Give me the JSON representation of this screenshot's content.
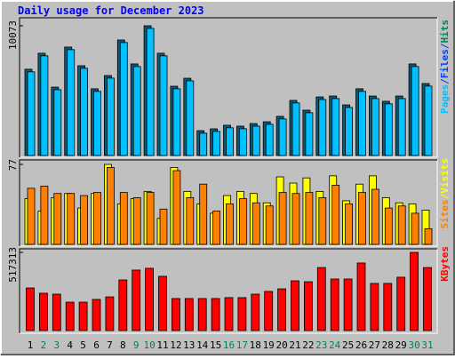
{
  "chart_data": [
    {
      "type": "bar",
      "title": "Daily usage for December 2023",
      "ylim": [
        0,
        10073
      ],
      "yticks": [
        10073
      ],
      "side_labels": [
        {
          "text": "Pages",
          "color": "#00c0ff"
        },
        {
          "text": "/",
          "color": "#0040ff"
        },
        {
          "text": "Files",
          "color": "#0040ff"
        },
        {
          "text": "/",
          "color": "#0040ff"
        },
        {
          "text": "Hits",
          "color": "#00805c"
        }
      ],
      "series": [
        {
          "color": "#0a5a7a",
          "values": [
            6700,
            7940,
            5310,
            8420,
            6970,
            5180,
            6210,
            8970,
            7110,
            10073,
            7940,
            5380,
            6000,
            1930,
            2070,
            2350,
            2280,
            2480,
            2620,
            3040,
            4280,
            3520,
            4550,
            4620,
            3930,
            5180,
            4620,
            4210,
            4620,
            7110,
            5590
          ]
        },
        {
          "color": "#00c0ff",
          "values": [
            6500,
            7740,
            5110,
            8220,
            6770,
            4980,
            6010,
            8770,
            6910,
            9870,
            7740,
            5180,
            5800,
            1730,
            1870,
            2150,
            2080,
            2280,
            2420,
            2840,
            4080,
            3320,
            4350,
            4420,
            3730,
            4980,
            4420,
            4010,
            4420,
            6910,
            5390
          ]
        }
      ]
    },
    {
      "type": "bar",
      "ylim": [
        0,
        77
      ],
      "yticks": [
        77
      ],
      "side_labels": [
        {
          "text": "Sites",
          "color": "#ff8000"
        },
        {
          "text": "/",
          "color": "#ffff00"
        },
        {
          "text": "Visits",
          "color": "#ffff00"
        }
      ],
      "series": [
        {
          "color": "#ffff00",
          "values": [
            44,
            32,
            45,
            49,
            35,
            49,
            77,
            39,
            44,
            51,
            25,
            74,
            51,
            39,
            30,
            47,
            51,
            49,
            40,
            65,
            59,
            64,
            51,
            66,
            42,
            58,
            66,
            45,
            40,
            39,
            33
          ]
        },
        {
          "color": "#ff8000",
          "values": [
            54,
            56,
            49,
            49,
            47,
            50,
            74,
            50,
            45,
            50,
            34,
            71,
            45,
            58,
            32,
            39,
            44,
            40,
            37,
            50,
            49,
            50,
            45,
            57,
            39,
            50,
            53,
            35,
            37,
            30,
            15
          ]
        }
      ]
    },
    {
      "type": "bar",
      "ylim": [
        0,
        517313
      ],
      "yticks": [
        517313
      ],
      "side_labels": [
        {
          "text": "KBytes",
          "color": "#ff0000"
        }
      ],
      "categories": [
        "1",
        "2",
        "3",
        "4",
        "5",
        "6",
        "7",
        "8",
        "9",
        "10",
        "11",
        "12",
        "13",
        "14",
        "15",
        "16",
        "17",
        "18",
        "19",
        "20",
        "21",
        "22",
        "23",
        "24",
        "25",
        "26",
        "27",
        "28",
        "29",
        "30",
        "31"
      ],
      "x_label_colors": [
        "#000000",
        "#00805c",
        "#00805c",
        "#000000",
        "#000000",
        "#000000",
        "#000000",
        "#000000",
        "#00805c",
        "#00805c",
        "#000000",
        "#000000",
        "#000000",
        "#000000",
        "#000000",
        "#00805c",
        "#00805c",
        "#000000",
        "#000000",
        "#000000",
        "#000000",
        "#000000",
        "#00805c",
        "#00805c",
        "#000000",
        "#000000",
        "#000000",
        "#000000",
        "#000000",
        "#00805c",
        "#00805c"
      ],
      "series": [
        {
          "color": "#ff0000",
          "values": [
            282000,
            247000,
            241000,
            188000,
            188000,
            206000,
            223000,
            335000,
            400000,
            412000,
            359000,
            212000,
            212000,
            212000,
            212000,
            218000,
            218000,
            241000,
            259000,
            276000,
            329000,
            323000,
            417000,
            341000,
            341000,
            447000,
            312000,
            312000,
            353000,
            517313,
            417000
          ]
        }
      ]
    }
  ]
}
